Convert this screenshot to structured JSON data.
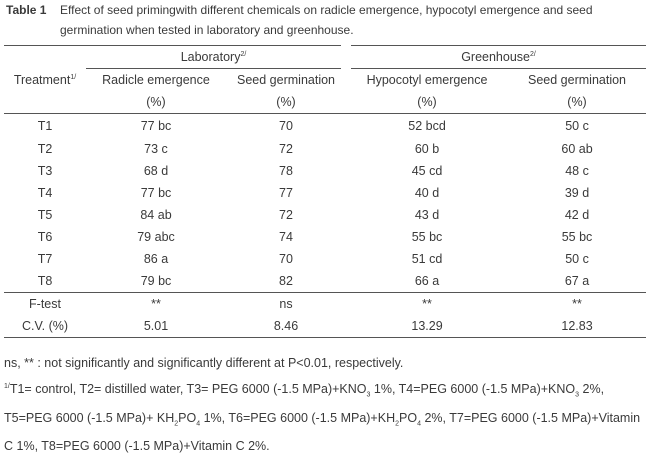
{
  "caption": {
    "label": "Table 1",
    "text": "Effect of seed primingwith different chemicals on radicle emergence, hypocotyl emergence and seed germination when tested in laboratory and greenhouse."
  },
  "table": {
    "treatment_header": {
      "label": "Treatment",
      "note": "1/"
    },
    "groups": [
      {
        "label": "Laboratory",
        "note": "2/"
      },
      {
        "label": "Greenhouse",
        "note": "2/"
      }
    ],
    "columns": [
      "Radicle emergence",
      "Seed germination",
      "Hypocotyl emergence",
      "Seed germination"
    ],
    "units": [
      "(%)",
      "(%)",
      "(%)",
      "(%)"
    ],
    "rows": [
      [
        "T1",
        "77 bc",
        "70",
        "52 bcd",
        "50 c"
      ],
      [
        "T2",
        "73 c",
        "72",
        "60 b",
        "60 ab"
      ],
      [
        "T3",
        "68 d",
        "78",
        "45 cd",
        "48 c"
      ],
      [
        "T4",
        "77 bc",
        "77",
        "40 d",
        "39 d"
      ],
      [
        "T5",
        "84 ab",
        "72",
        "43 d",
        "42 d"
      ],
      [
        "T6",
        "79 abc",
        "74",
        "55 bc",
        "55 bc"
      ],
      [
        "T7",
        "86 a",
        "70",
        "51 cd",
        "50 c"
      ],
      [
        "T8",
        "79 bc",
        "82",
        "66 a",
        "67 a"
      ]
    ],
    "stats": [
      [
        "F-test",
        "**",
        "ns",
        "**",
        "**"
      ],
      [
        "C.V. (%)",
        "5.01",
        "8.46",
        "13.29",
        "12.83"
      ]
    ]
  },
  "footnotes": [
    {
      "mark": "",
      "parts": [
        "ns, ** : not significantly and  significantly different at P<0.01, respectively."
      ]
    },
    {
      "mark": "1/",
      "parts": [
        "T1= control, T2= distilled water, T3= PEG 6000 (-1.5 MPa)+KNO",
        "3",
        " 1%, T4=PEG 6000 (-1.5 MPa)+KNO",
        "3",
        " 2%, T5=PEG 6000 (-1.5 MPa)+ KH",
        "2",
        "PO",
        "4",
        " 1%, T6=PEG 6000 (-1.5 MPa)+KH",
        "2",
        "PO",
        "4",
        " 2%, T7=PEG 6000 (-1.5 MPa)+Vitamin C 1%, T8=PEG 6000 (-1.5 MPa)+Vitamin C 2%."
      ]
    }
  ]
}
